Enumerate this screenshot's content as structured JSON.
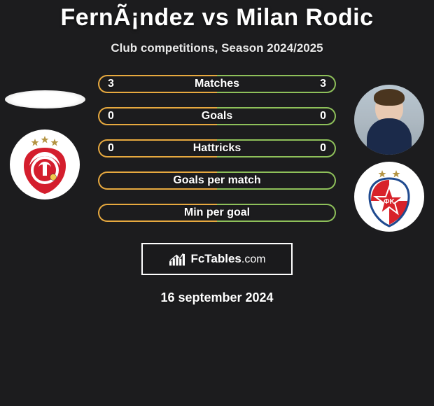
{
  "title": "FernÃ¡ndez vs Milan Rodic",
  "subtitle": "Club competitions, Season 2024/2025",
  "date": "16 september 2024",
  "branding": "FcTables",
  "branding_suffix": ".com",
  "colors": {
    "left_border": "#e7a93f",
    "right_border": "#8ec05a",
    "row_bg": "rgba(0,0,0,0)",
    "title_color": "#ffffff",
    "benfica_red": "#d41e2d",
    "benfica_shield": "#e0222e",
    "zvezda_red": "#d8222a",
    "zvezda_blue": "#1f4a8f",
    "star_gold": "#b49443"
  },
  "rows": [
    {
      "label": "Matches",
      "left": "3",
      "right": "3",
      "type": "full"
    },
    {
      "label": "Goals",
      "left": "0",
      "right": "0",
      "type": "full"
    },
    {
      "label": "Hattricks",
      "left": "0",
      "right": "0",
      "type": "full"
    },
    {
      "label": "Goals per match",
      "left": "",
      "right": "",
      "type": "narrow"
    },
    {
      "label": "Min per goal",
      "left": "",
      "right": "",
      "type": "narrow"
    }
  ],
  "left_crest_stars": 3,
  "right_crest_stars": 2
}
